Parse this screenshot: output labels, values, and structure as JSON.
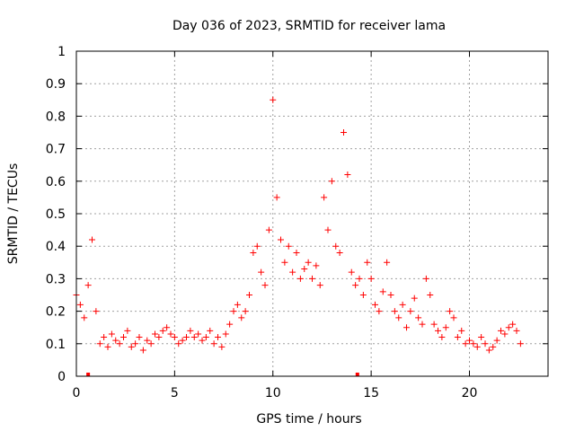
{
  "chart_data": {
    "type": "scatter",
    "title": "Day 036 of 2023, SRMTID for receiver lama",
    "xlabel": "GPS time / hours",
    "ylabel": "SRMTID / TECUs",
    "xlim": [
      0,
      24
    ],
    "ylim": [
      0,
      1
    ],
    "xticks": [
      0,
      5,
      10,
      15,
      20
    ],
    "yticks": [
      0,
      0.1,
      0.2,
      0.3,
      0.4,
      0.5,
      0.6,
      0.7,
      0.8,
      0.9,
      1
    ],
    "grid": true,
    "marker": "+",
    "color": "#ff0000",
    "gap_markers_x": [
      0.6,
      14.3
    ],
    "series": [
      {
        "name": "SRMTID",
        "x": [
          0.0,
          0.2,
          0.4,
          0.6,
          0.8,
          1.0,
          1.2,
          1.4,
          1.6,
          1.8,
          2.0,
          2.2,
          2.4,
          2.6,
          2.8,
          3.0,
          3.2,
          3.4,
          3.6,
          3.8,
          4.0,
          4.2,
          4.4,
          4.6,
          4.8,
          5.0,
          5.2,
          5.4,
          5.6,
          5.8,
          6.0,
          6.2,
          6.4,
          6.6,
          6.8,
          7.0,
          7.2,
          7.4,
          7.6,
          7.8,
          8.0,
          8.2,
          8.4,
          8.6,
          8.8,
          9.0,
          9.2,
          9.4,
          9.6,
          9.8,
          10.0,
          10.2,
          10.4,
          10.6,
          10.8,
          11.0,
          11.2,
          11.4,
          11.6,
          11.8,
          12.0,
          12.2,
          12.4,
          12.6,
          12.8,
          13.0,
          13.2,
          13.4,
          13.6,
          13.8,
          14.0,
          14.2,
          14.4,
          14.6,
          14.8,
          15.0,
          15.2,
          15.4,
          15.6,
          15.8,
          16.0,
          16.2,
          16.4,
          16.6,
          16.8,
          17.0,
          17.2,
          17.4,
          17.6,
          17.8,
          18.0,
          18.2,
          18.4,
          18.6,
          18.8,
          19.0,
          19.2,
          19.4,
          19.6,
          19.8,
          20.0,
          20.2,
          20.4,
          20.6,
          20.8,
          21.0,
          21.2,
          21.4,
          21.6,
          21.8,
          22.0,
          22.2,
          22.4,
          22.6
        ],
        "y": [
          0.25,
          0.22,
          0.18,
          0.28,
          0.42,
          0.2,
          0.1,
          0.12,
          0.09,
          0.13,
          0.11,
          0.1,
          0.12,
          0.14,
          0.09,
          0.1,
          0.12,
          0.08,
          0.11,
          0.1,
          0.13,
          0.12,
          0.14,
          0.15,
          0.13,
          0.12,
          0.1,
          0.11,
          0.12,
          0.14,
          0.12,
          0.13,
          0.11,
          0.12,
          0.14,
          0.1,
          0.12,
          0.09,
          0.13,
          0.16,
          0.2,
          0.22,
          0.18,
          0.2,
          0.25,
          0.38,
          0.4,
          0.32,
          0.28,
          0.45,
          0.85,
          0.55,
          0.42,
          0.35,
          0.4,
          0.32,
          0.38,
          0.3,
          0.33,
          0.35,
          0.3,
          0.34,
          0.28,
          0.55,
          0.45,
          0.6,
          0.4,
          0.38,
          0.75,
          0.62,
          0.32,
          0.28,
          0.3,
          0.25,
          0.35,
          0.3,
          0.22,
          0.2,
          0.26,
          0.35,
          0.25,
          0.2,
          0.18,
          0.22,
          0.15,
          0.2,
          0.24,
          0.18,
          0.16,
          0.3,
          0.25,
          0.16,
          0.14,
          0.12,
          0.15,
          0.2,
          0.18,
          0.12,
          0.14,
          0.1,
          0.11,
          0.1,
          0.09,
          0.12,
          0.1,
          0.08,
          0.09,
          0.11,
          0.14,
          0.13,
          0.15,
          0.16,
          0.14,
          0.1
        ]
      }
    ]
  }
}
